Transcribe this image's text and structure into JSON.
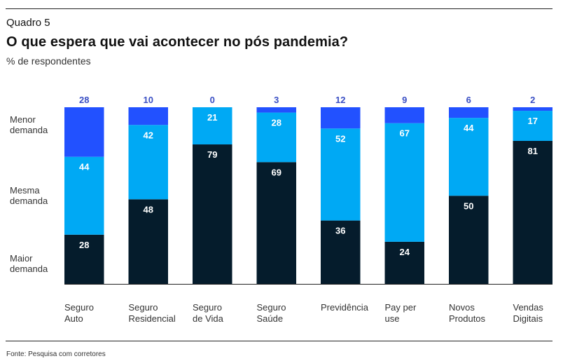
{
  "header": {
    "kicker": "Quadro 5",
    "title": "O que espera que vai acontecer no pós pandemia?",
    "subtitle": "% de respondentes"
  },
  "footer": {
    "source": "Fonte: Pesquisa com corretores"
  },
  "colors": {
    "maior": "#051C2C",
    "mesma": "#00A9F4",
    "menor": "#2251FF",
    "top_label": "#3A4FC4"
  },
  "chart_data": {
    "type": "bar",
    "stacked": true,
    "orientation": "vertical",
    "title": "O que espera que vai acontecer no pós pandemia?",
    "ylabel": "% de respondentes",
    "xlabel": "",
    "ylim": [
      0,
      100
    ],
    "grid": false,
    "legend_placement": "left",
    "categories": [
      [
        "Seguro",
        "Auto"
      ],
      [
        "Seguro",
        "Residencial"
      ],
      [
        "Seguro",
        "de Vida"
      ],
      [
        "Seguro",
        "Saúde"
      ],
      [
        "Previdência"
      ],
      [
        "Pay per",
        "use"
      ],
      [
        "Novos",
        "Produtos"
      ],
      [
        "Vendas",
        "Digitais"
      ]
    ],
    "series": [
      {
        "name": "Maior demanda",
        "label_lines": [
          "Maior",
          "demanda"
        ],
        "values": [
          28,
          48,
          79,
          69,
          36,
          24,
          50,
          81
        ]
      },
      {
        "name": "Mesma demanda",
        "label_lines": [
          "Mesma",
          "demanda"
        ],
        "values": [
          44,
          42,
          21,
          28,
          52,
          67,
          44,
          17
        ]
      },
      {
        "name": "Menor demanda",
        "label_lines": [
          "Menor",
          "demanda"
        ],
        "values": [
          28,
          10,
          0,
          3,
          12,
          9,
          6,
          2
        ]
      }
    ]
  }
}
